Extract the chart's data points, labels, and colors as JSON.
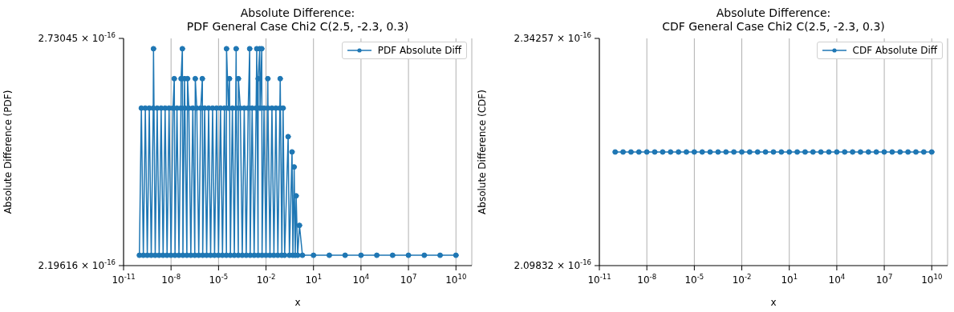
{
  "chart_data": [
    {
      "type": "line",
      "title": "Absolute Difference:\nPDF General Case Chi2 C(2.5, -2.3, 0.3)",
      "xlabel": "x",
      "ylabel": "Absolute Difference (PDF)",
      "log": "xy",
      "grid": "x",
      "legend": "top right",
      "marker": "circle",
      "line_style": "solid",
      "xlim": [
        1e-11,
        100000000000.0
      ],
      "xticks": [
        {
          "value": 1e-11,
          "label": "10$^{-11}$"
        },
        {
          "value": 1e-08,
          "label": "10$^{-8}$"
        },
        {
          "value": 1e-05,
          "label": "10$^{-5}$"
        },
        {
          "value": 0.01,
          "label": "10$^{-2}$"
        },
        {
          "value": 10,
          "label": "10$^{1}$"
        },
        {
          "value": 10000,
          "label": "10$^{4}$"
        },
        {
          "value": 10000000.0,
          "label": "10$^{7}$"
        },
        {
          "value": 10000000000.0,
          "label": "10$^{10}$"
        }
      ],
      "ylim": [
        2.19616e-16,
        2.73045e-16
      ],
      "yticks": [
        {
          "value": 2.19616e-16,
          "label": "2.19616 × 10$^{-16}$"
        },
        {
          "value": 2.73045e-16,
          "label": "2.73045 × 10$^{-16}$"
        }
      ],
      "x": [
        1e-10,
        1.33e-10,
        1.78e-10,
        2.37e-10,
        3.16e-10,
        4.22e-10,
        5.62e-10,
        7.5e-10,
        7.8e-10,
        1e-09,
        1.33e-09,
        1.78e-09,
        2.37e-09,
        3.16e-09,
        4.22e-09,
        5.62e-09,
        7.5e-09,
        1e-08,
        1.33e-08,
        1.6e-08,
        1.78e-08,
        2.37e-08,
        3.16e-08,
        4.22e-08,
        4.3e-08,
        5.2e-08,
        5.62e-08,
        7.1e-08,
        7.5e-08,
        1e-07,
        1.1e-07,
        1.33e-07,
        1.78e-07,
        2.37e-07,
        3.16e-07,
        3.4e-07,
        4.22e-07,
        5.62e-07,
        7.5e-07,
        9.5e-07,
        1e-06,
        1.33e-06,
        1.78e-06,
        2.37e-06,
        3.16e-06,
        4.22e-06,
        5.62e-06,
        7.5e-06,
        1e-05,
        1.33e-05,
        1.78e-05,
        2.37e-05,
        3.16e-05,
        3.2e-05,
        4.22e-05,
        4.9e-05,
        5.62e-05,
        7.5e-05,
        0.0001,
        0.00013,
        0.000133,
        0.000178,
        0.00018,
        0.000237,
        0.000316,
        0.000422,
        0.000562,
        0.00075,
        0.00093,
        0.001,
        0.00133,
        0.00178,
        0.00237,
        0.0026,
        0.00316,
        0.0032,
        0.004,
        0.00422,
        0.0054,
        0.00562,
        0.0075,
        0.01,
        0.013,
        0.0133,
        0.0178,
        0.0237,
        0.0316,
        0.0422,
        0.0562,
        0.075,
        0.079,
        0.1,
        0.12,
        0.15,
        0.25,
        0.3,
        0.44,
        0.5,
        0.6,
        0.7,
        0.8,
        1,
        1.3,
        2,
        10,
        100,
        1000.0,
        10000.0,
        100000.0,
        1000000.0,
        10000000.0,
        100000000.0,
        1000000000.0,
        10000000000.0
      ],
      "series": [
        {
          "name": "PDF Absolute Diff",
          "color": "#1f77b4",
          "values": [
            2.218e-16,
            2.554e-16,
            2.218e-16,
            2.554e-16,
            2.218e-16,
            2.554e-16,
            2.218e-16,
            2.554e-16,
            2.7036e-16,
            2.218e-16,
            2.554e-16,
            2.218e-16,
            2.554e-16,
            2.218e-16,
            2.554e-16,
            2.218e-16,
            2.554e-16,
            2.218e-16,
            2.554e-16,
            2.627e-16,
            2.218e-16,
            2.554e-16,
            2.218e-16,
            2.554e-16,
            2.627e-16,
            2.7036e-16,
            2.218e-16,
            2.627e-16,
            2.554e-16,
            2.218e-16,
            2.627e-16,
            2.554e-16,
            2.218e-16,
            2.554e-16,
            2.218e-16,
            2.627e-16,
            2.554e-16,
            2.218e-16,
            2.554e-16,
            2.627e-16,
            2.218e-16,
            2.554e-16,
            2.218e-16,
            2.554e-16,
            2.218e-16,
            2.554e-16,
            2.218e-16,
            2.554e-16,
            2.218e-16,
            2.554e-16,
            2.218e-16,
            2.554e-16,
            2.218e-16,
            2.7036e-16,
            2.554e-16,
            2.627e-16,
            2.218e-16,
            2.554e-16,
            2.218e-16,
            2.7036e-16,
            2.554e-16,
            2.218e-16,
            2.627e-16,
            2.554e-16,
            2.218e-16,
            2.554e-16,
            2.218e-16,
            2.554e-16,
            2.7036e-16,
            2.218e-16,
            2.554e-16,
            2.218e-16,
            2.554e-16,
            2.7036e-16,
            2.218e-16,
            2.627e-16,
            2.7036e-16,
            2.554e-16,
            2.7036e-16,
            2.218e-16,
            2.554e-16,
            2.218e-16,
            2.627e-16,
            2.554e-16,
            2.218e-16,
            2.554e-16,
            2.218e-16,
            2.554e-16,
            2.218e-16,
            2.554e-16,
            2.627e-16,
            2.218e-16,
            2.554e-16,
            2.218e-16,
            2.485e-16,
            2.218e-16,
            2.449e-16,
            2.218e-16,
            2.414e-16,
            2.218e-16,
            2.348e-16,
            2.218e-16,
            2.2825e-16,
            2.218e-16,
            2.218e-16,
            2.218e-16,
            2.218e-16,
            2.218e-16,
            2.218e-16,
            2.218e-16,
            2.218e-16,
            2.218e-16,
            2.218e-16,
            2.218e-16
          ]
        }
      ]
    },
    {
      "type": "line",
      "title": "Absolute Difference:\nCDF General Case Chi2 C(2.5, -2.3, 0.3)",
      "xlabel": "x",
      "ylabel": "Absolute Difference (CDF)",
      "log": "xy",
      "grid": "x",
      "legend": "top right",
      "marker": "circle",
      "line_style": "solid",
      "xlim": [
        1e-11,
        100000000000.0
      ],
      "xticks": [
        {
          "value": 1e-11,
          "label": "10$^{-11}$"
        },
        {
          "value": 1e-08,
          "label": "10$^{-8}$"
        },
        {
          "value": 1e-05,
          "label": "10$^{-5}$"
        },
        {
          "value": 0.01,
          "label": "10$^{-2}$"
        },
        {
          "value": 10,
          "label": "10$^{1}$"
        },
        {
          "value": 10000,
          "label": "10$^{4}$"
        },
        {
          "value": 10000000.0,
          "label": "10$^{7}$"
        },
        {
          "value": 10000000000.0,
          "label": "10$^{10}$"
        }
      ],
      "ylim": [
        2.09832e-16,
        2.34257e-16
      ],
      "yticks": [
        {
          "value": 2.09832e-16,
          "label": "2.09832 × 10$^{-16}$"
        },
        {
          "value": 2.34257e-16,
          "label": "2.34257 × 10$^{-16}$"
        }
      ],
      "x": [
        1e-10,
        3.16e-10,
        1e-09,
        3.16e-09,
        1e-08,
        3.16e-08,
        1e-07,
        3.16e-07,
        1e-06,
        3.16e-06,
        1e-05,
        3.16e-05,
        0.0001,
        0.000316,
        0.001,
        0.00316,
        0.01,
        0.0316,
        0.1,
        0.316,
        1,
        3.16,
        10,
        31.6,
        100,
        316,
        1000,
        3160,
        10000.0,
        31600.0,
        100000.0,
        316000.0,
        1000000.0,
        3160000.0,
        10000000.0,
        31600000.0,
        100000000.0,
        316000000.0,
        1000000000.0,
        3160000000.0,
        10000000000.0
      ],
      "series": [
        {
          "name": "CDF Absolute Diff",
          "color": "#1f77b4",
          "values": [
            2.2171e-16,
            2.2171e-16,
            2.2171e-16,
            2.2171e-16,
            2.2171e-16,
            2.2171e-16,
            2.2171e-16,
            2.2171e-16,
            2.2171e-16,
            2.2171e-16,
            2.2171e-16,
            2.2171e-16,
            2.2171e-16,
            2.2171e-16,
            2.2171e-16,
            2.2171e-16,
            2.2171e-16,
            2.2171e-16,
            2.2171e-16,
            2.2171e-16,
            2.2171e-16,
            2.2171e-16,
            2.2171e-16,
            2.2171e-16,
            2.2171e-16,
            2.2171e-16,
            2.2171e-16,
            2.2171e-16,
            2.2171e-16,
            2.2171e-16,
            2.2171e-16,
            2.2171e-16,
            2.2171e-16,
            2.2171e-16,
            2.2171e-16,
            2.2171e-16,
            2.2171e-16,
            2.2171e-16,
            2.2171e-16,
            2.2171e-16,
            2.2171e-16
          ]
        }
      ]
    }
  ]
}
